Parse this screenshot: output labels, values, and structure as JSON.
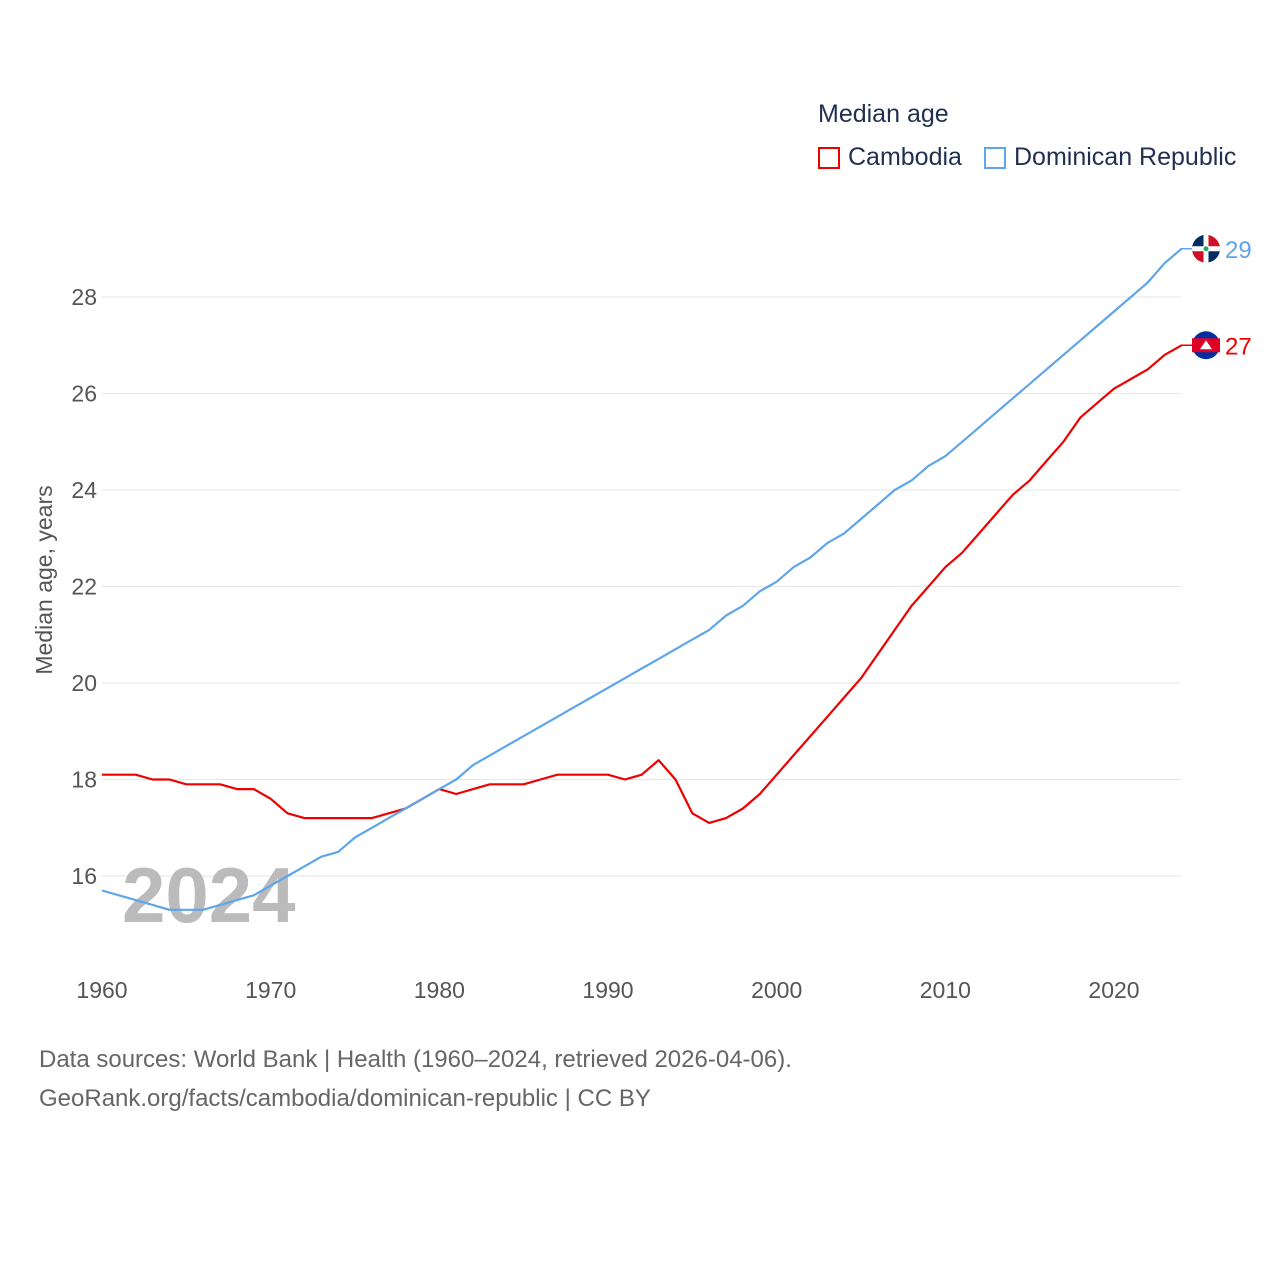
{
  "chart_data": {
    "type": "line",
    "title": "Median age",
    "ylabel": "Median age, years",
    "xlabel": "",
    "xlim": [
      1960,
      2024
    ],
    "ylim": [
      15,
      29
    ],
    "x_ticks": [
      "1960",
      "1970",
      "1980",
      "1990",
      "2000",
      "2010",
      "2020"
    ],
    "y_ticks": [
      "16",
      "18",
      "20",
      "22",
      "24",
      "26",
      "28"
    ],
    "grid": true,
    "legend_placement": "top-right",
    "year_watermark": "2024",
    "x": [
      1960,
      1961,
      1962,
      1963,
      1964,
      1965,
      1966,
      1967,
      1968,
      1969,
      1970,
      1971,
      1972,
      1973,
      1974,
      1975,
      1976,
      1977,
      1978,
      1979,
      1980,
      1981,
      1982,
      1983,
      1984,
      1985,
      1986,
      1987,
      1988,
      1989,
      1990,
      1991,
      1992,
      1993,
      1994,
      1995,
      1996,
      1997,
      1998,
      1999,
      2000,
      2001,
      2002,
      2003,
      2004,
      2005,
      2006,
      2007,
      2008,
      2009,
      2010,
      2011,
      2012,
      2013,
      2014,
      2015,
      2016,
      2017,
      2018,
      2019,
      2020,
      2021,
      2022,
      2023,
      2024
    ],
    "series": [
      {
        "name": "Cambodia",
        "color": "#ee0000",
        "end_label": "27",
        "values": [
          18.1,
          18.1,
          18.1,
          18.0,
          18.0,
          17.9,
          17.9,
          17.9,
          17.8,
          17.8,
          17.6,
          17.3,
          17.2,
          17.2,
          17.2,
          17.2,
          17.2,
          17.3,
          17.4,
          17.6,
          17.8,
          17.7,
          17.8,
          17.9,
          17.9,
          17.9,
          18.0,
          18.1,
          18.1,
          18.1,
          18.1,
          18.0,
          18.1,
          18.4,
          18.0,
          17.3,
          17.1,
          17.2,
          17.4,
          17.7,
          18.1,
          18.5,
          18.9,
          19.3,
          19.7,
          20.1,
          20.6,
          21.1,
          21.6,
          22.0,
          22.4,
          22.7,
          23.1,
          23.5,
          23.9,
          24.2,
          24.6,
          25.0,
          25.5,
          25.8,
          26.1,
          26.3,
          26.5,
          26.8,
          27.0
        ]
      },
      {
        "name": "Dominican Republic",
        "color": "#5ea5ea",
        "end_label": "29",
        "values": [
          15.7,
          15.6,
          15.5,
          15.4,
          15.3,
          15.3,
          15.3,
          15.4,
          15.5,
          15.6,
          15.8,
          16.0,
          16.2,
          16.4,
          16.5,
          16.8,
          17.0,
          17.2,
          17.4,
          17.6,
          17.8,
          18.0,
          18.3,
          18.5,
          18.7,
          18.9,
          19.1,
          19.3,
          19.5,
          19.7,
          19.9,
          20.1,
          20.3,
          20.5,
          20.7,
          20.9,
          21.1,
          21.4,
          21.6,
          21.9,
          22.1,
          22.4,
          22.6,
          22.9,
          23.1,
          23.4,
          23.7,
          24.0,
          24.2,
          24.5,
          24.7,
          25.0,
          25.3,
          25.6,
          25.9,
          26.2,
          26.5,
          26.8,
          27.1,
          27.4,
          27.7,
          28.0,
          28.3,
          28.7,
          29.0
        ]
      }
    ]
  },
  "footer": {
    "line1": "Data sources: World Bank | Health (1960–2024, retrieved 2026-04-06).",
    "line2": "GeoRank.org/facts/cambodia/dominican-republic | CC BY"
  }
}
